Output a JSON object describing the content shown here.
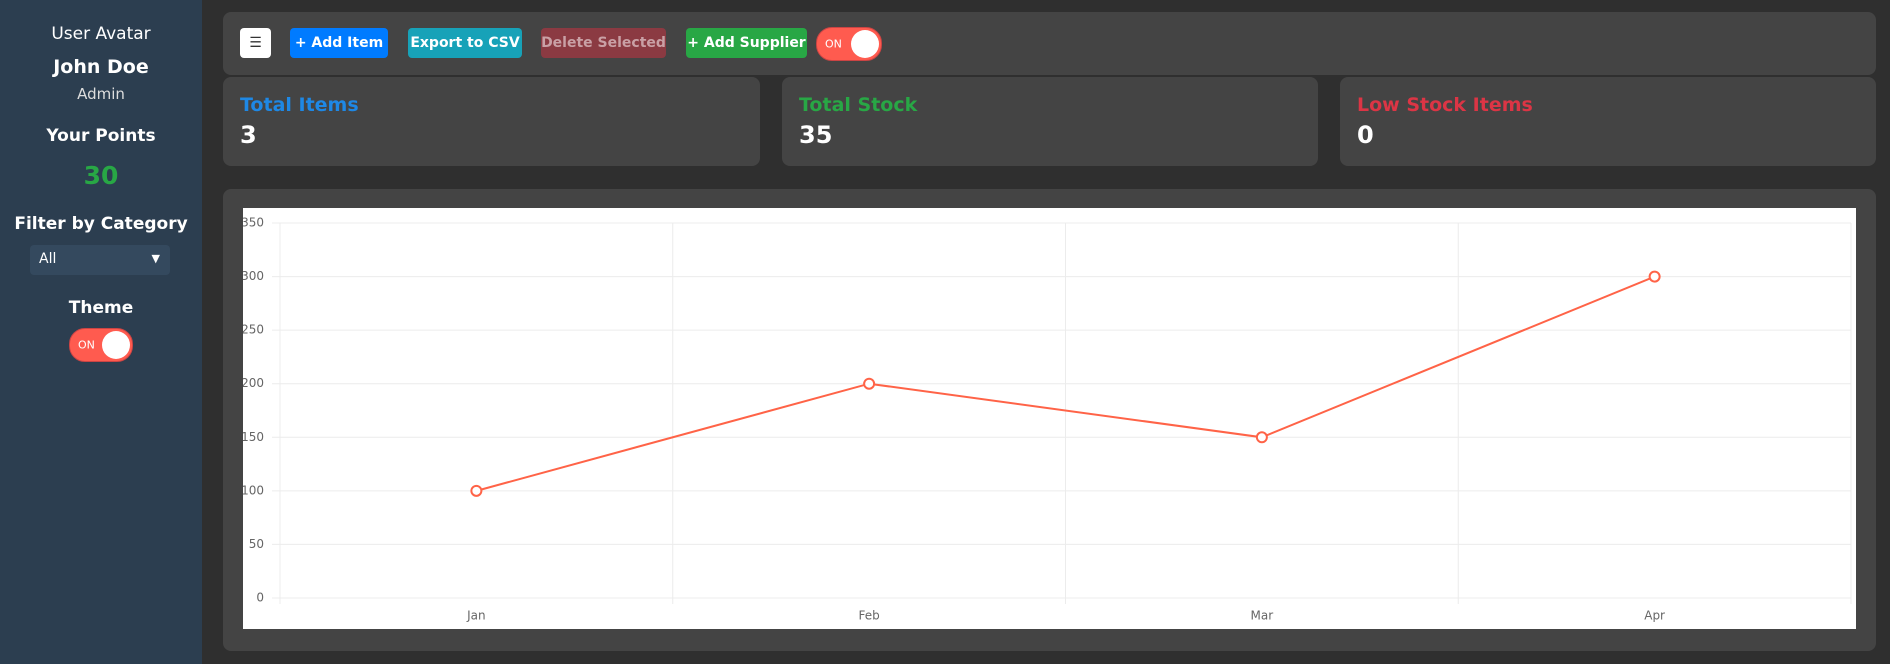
{
  "sidebar": {
    "avatar_alt": "User Avatar",
    "user_name": "John Doe",
    "role": "Admin",
    "points_label": "Your Points",
    "points": 30,
    "filter_label": "Filter by Category",
    "filter_value": "All",
    "theme_label": "Theme",
    "theme_toggle": "ON"
  },
  "toolbar": {
    "menu": "☰",
    "buttons": [
      "+ Add Item",
      "Export to CSV",
      "Delete Selected",
      "+ Add Supplier"
    ],
    "toggle": "ON"
  },
  "stats": [
    {
      "title": "Total Items",
      "value": 3
    },
    {
      "title": "Total Stock",
      "value": 35
    },
    {
      "title": "Low Stock Items",
      "value": 0
    }
  ],
  "chart_data": {
    "type": "line",
    "categories": [
      "Jan",
      "Feb",
      "Mar",
      "Apr"
    ],
    "series": [
      {
        "color": "#ff6347",
        "values": [
          100,
          200,
          150,
          300
        ]
      }
    ],
    "ylim": [
      0,
      350
    ],
    "yticks": [
      0,
      50,
      100,
      150,
      200,
      250,
      300,
      350
    ],
    "grid": true
  }
}
